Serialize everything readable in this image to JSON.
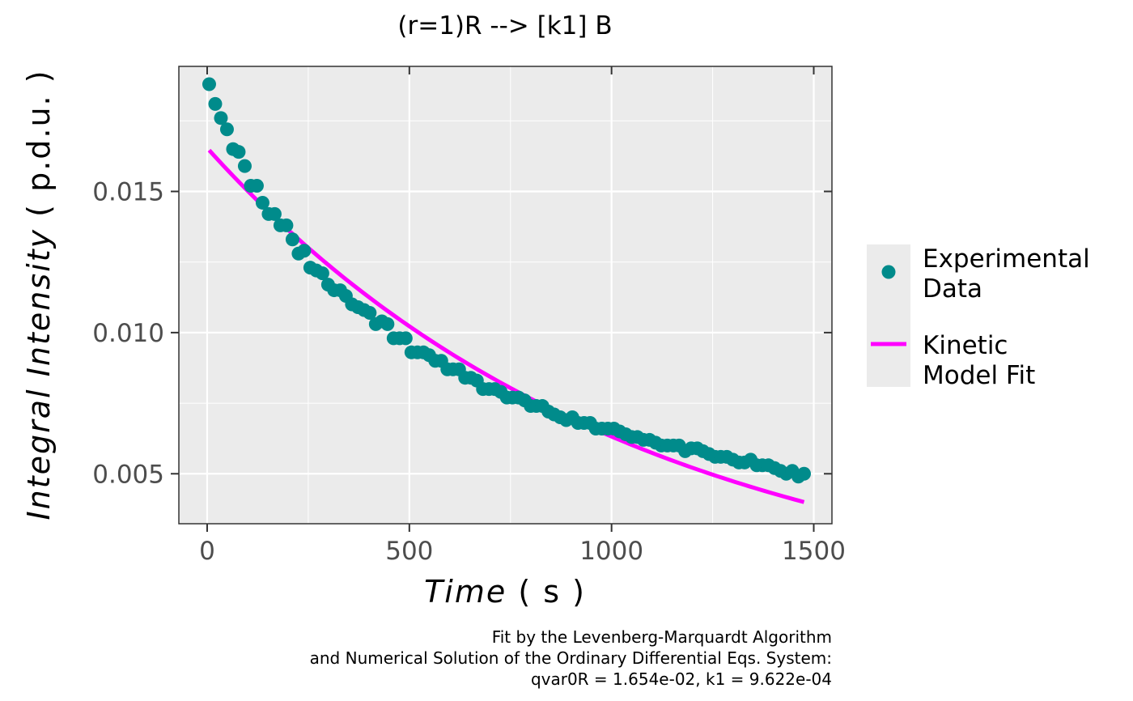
{
  "chart_data": {
    "type": "scatter",
    "title": "(r=1)R --> [k1] B",
    "xlabel": {
      "italic": "Time",
      "unit": " ( s )"
    },
    "ylabel": {
      "italic": "Integral Intensity",
      "unit": " ( p.d.u. )"
    },
    "xlim": [
      -70,
      1545
    ],
    "ylim": [
      0.00323,
      0.01943
    ],
    "x_ticks": [
      0,
      500,
      1000,
      1500
    ],
    "x_tick_labels": [
      "0",
      "500",
      "1000",
      "1500"
    ],
    "y_ticks": [
      0.005,
      0.01,
      0.015
    ],
    "y_tick_labels": [
      "0.005",
      "0.010",
      "0.015"
    ],
    "grid": true,
    "legend_position": "right",
    "legend": [
      {
        "label_line1": "Experimental",
        "label_line2": "Data",
        "marker": "point"
      },
      {
        "label_line1": "Kinetic",
        "label_line2": "Model Fit",
        "marker": "line"
      }
    ],
    "caption": [
      "Fit by the Levenberg-Marquardt Algorithm",
      "and Numerical Solution of the Ordinary Differential Eqs. System:",
      "qvar0R = 1.654e-02, k1 = 9.622e-04"
    ],
    "colors": {
      "points": "#008b8b",
      "fit": "#ff00ff",
      "panel": "#ebebeb",
      "grid": "#ffffff"
    },
    "series": [
      {
        "name": "Experimental Data",
        "kind": "points",
        "x": [
          5,
          20,
          34,
          49,
          64,
          78,
          93,
          108,
          123,
          137,
          152,
          167,
          181,
          196,
          211,
          226,
          240,
          255,
          270,
          285,
          299,
          314,
          329,
          343,
          358,
          373,
          388,
          402,
          417,
          432,
          446,
          461,
          476,
          491,
          505,
          520,
          535,
          549,
          564,
          579,
          594,
          608,
          623,
          638,
          652,
          667,
          682,
          697,
          711,
          726,
          741,
          755,
          770,
          785,
          800,
          814,
          829,
          844,
          858,
          873,
          888,
          903,
          917,
          932,
          947,
          961,
          976,
          991,
          1006,
          1020,
          1035,
          1050,
          1064,
          1079,
          1094,
          1109,
          1123,
          1138,
          1153,
          1167,
          1182,
          1197,
          1212,
          1226,
          1241,
          1256,
          1270,
          1285,
          1300,
          1315,
          1329,
          1344,
          1359,
          1373,
          1388,
          1403,
          1418,
          1432,
          1447,
          1462,
          1476
        ],
        "y": [
          0.0188,
          0.0181,
          0.0176,
          0.0172,
          0.0165,
          0.0164,
          0.0159,
          0.0152,
          0.0152,
          0.0146,
          0.0142,
          0.0142,
          0.0138,
          0.0138,
          0.0133,
          0.0128,
          0.0129,
          0.0123,
          0.0122,
          0.0121,
          0.0117,
          0.0115,
          0.0115,
          0.0113,
          0.011,
          0.0109,
          0.0108,
          0.0107,
          0.0103,
          0.0104,
          0.0103,
          0.0098,
          0.0098,
          0.0098,
          0.0093,
          0.0093,
          0.0093,
          0.0092,
          0.009,
          0.009,
          0.0087,
          0.0087,
          0.0087,
          0.0084,
          0.0084,
          0.0083,
          0.008,
          0.008,
          0.008,
          0.0079,
          0.0077,
          0.0077,
          0.0077,
          0.0076,
          0.0074,
          0.0074,
          0.0074,
          0.0072,
          0.0071,
          0.007,
          0.0069,
          0.007,
          0.0068,
          0.0068,
          0.0068,
          0.0066,
          0.0066,
          0.0066,
          0.0066,
          0.0065,
          0.0064,
          0.0063,
          0.0063,
          0.0062,
          0.0062,
          0.0061,
          0.006,
          0.006,
          0.006,
          0.006,
          0.0058,
          0.0059,
          0.0059,
          0.0058,
          0.0057,
          0.0056,
          0.0056,
          0.0056,
          0.0055,
          0.0054,
          0.0054,
          0.0055,
          0.0053,
          0.0053,
          0.0053,
          0.0052,
          0.0051,
          0.005,
          0.0051,
          0.0049,
          0.005
        ]
      },
      {
        "name": "Kinetic Model Fit",
        "kind": "line",
        "q0": 0.01654,
        "k1": 0.0009622,
        "x_range": [
          5,
          1476
        ]
      }
    ]
  }
}
